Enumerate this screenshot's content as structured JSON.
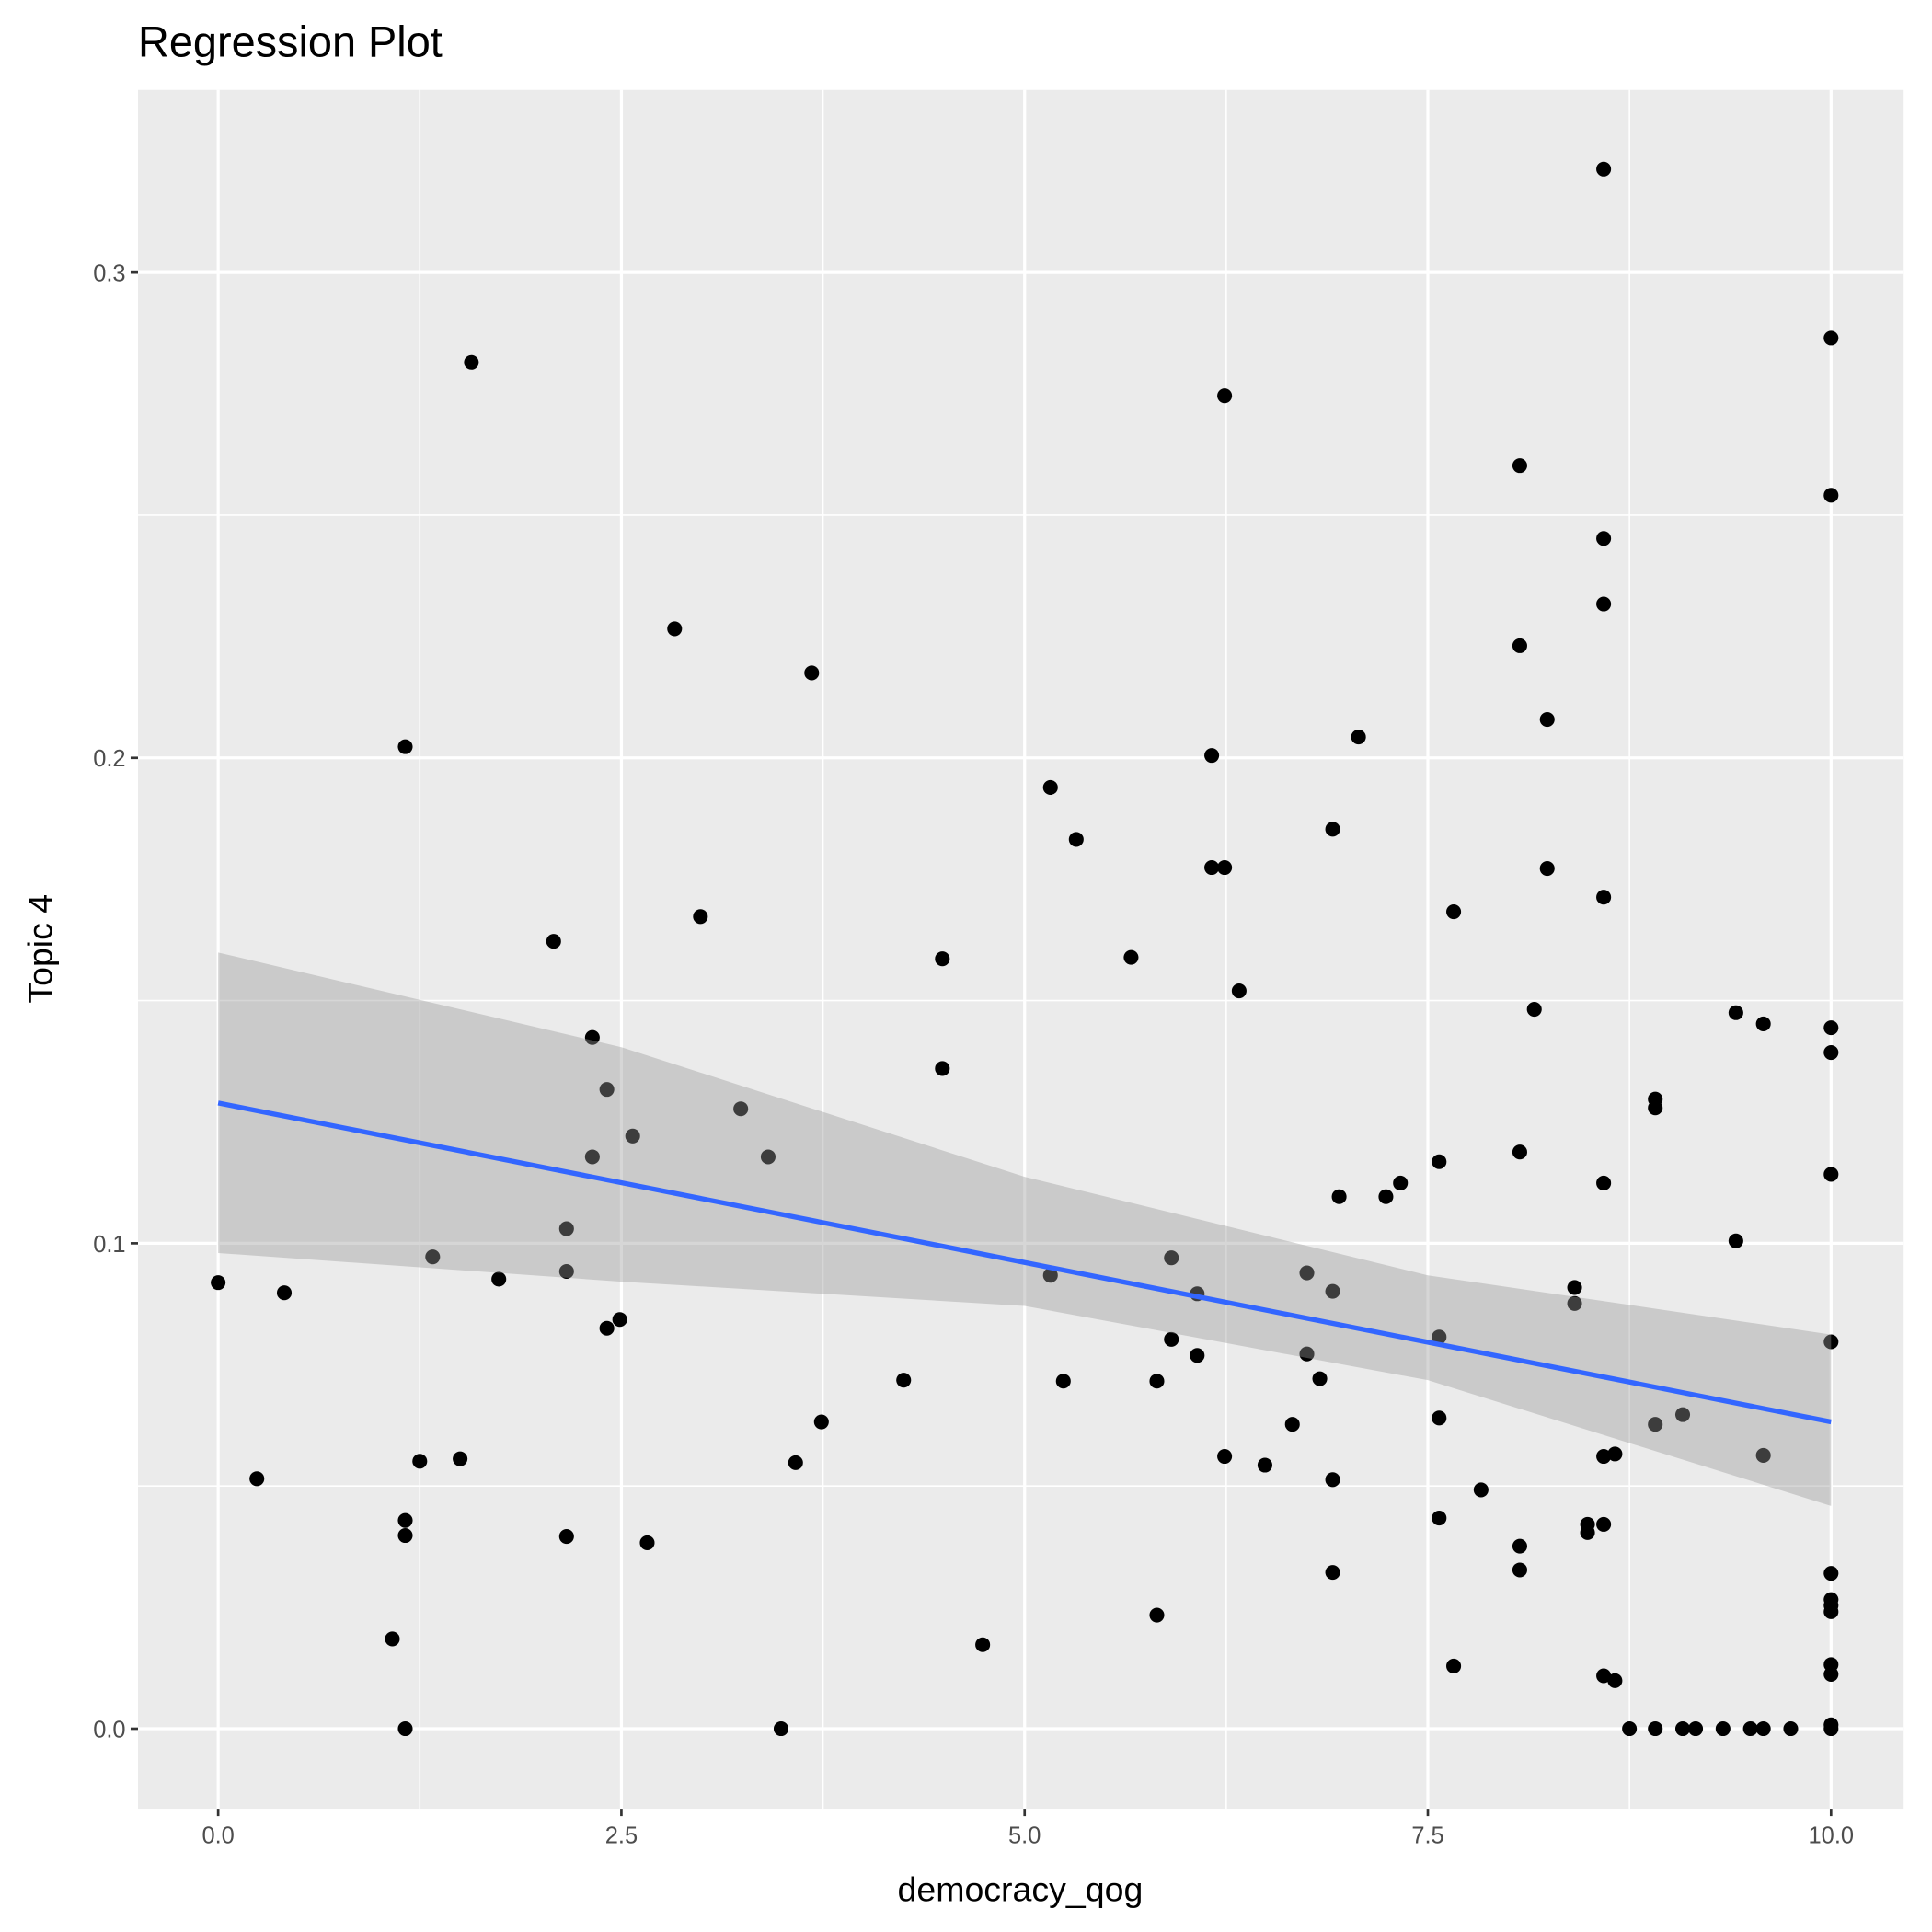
{
  "chart_data": {
    "type": "scatter",
    "title": "Regression Plot",
    "x_label": "democracy_qog",
    "y_label": "Topic 4",
    "xlim": [
      -0.497,
      10.45
    ],
    "ylim": [
      -0.0165,
      0.3376
    ],
    "xticks": [
      {
        "value": 0,
        "label": "0.0"
      },
      2.5,
      {
        "value": 5,
        "label": "5.0"
      },
      7.5,
      {
        "value": 10,
        "label": "10.0"
      }
    ],
    "yticks": [
      {
        "value": 0,
        "label": "0.0"
      },
      0.1,
      0.2,
      0.3
    ],
    "grid": true,
    "series": [
      {
        "color": "#000000",
        "x": [
          0,
          0.24,
          0.41,
          1.08,
          1.16,
          1.16,
          1.16,
          1.16,
          1.25,
          1.33,
          1.5,
          1.57,
          1.74,
          2.08,
          2.16,
          2.16,
          2.16,
          2.32,
          2.32,
          2.41,
          2.41,
          2.49,
          2.57,
          2.66,
          2.83,
          2.99,
          3.24,
          3.41,
          3.49,
          3.58,
          3.68,
          3.74,
          4.25,
          4.49,
          4.49,
          4.74,
          5.16,
          5.16,
          5.24,
          5.32,
          5.66,
          5.82,
          5.82,
          5.91,
          5.91,
          6.07,
          6.07,
          6.16,
          6.16,
          6.24,
          6.24,
          6.24,
          6.33,
          6.49,
          6.66,
          6.75,
          6.75,
          6.83,
          6.91,
          6.91,
          6.91,
          6.91,
          6.95,
          7.07,
          7.24,
          7.33,
          7.57,
          7.57,
          7.57,
          7.57,
          7.66,
          7.66,
          7.83,
          8.07,
          8.07,
          8.07,
          8.07,
          8.07,
          8.16,
          8.24,
          8.24,
          8.41,
          8.41,
          8.49,
          8.49,
          8.59,
          8.59,
          8.59,
          8.59,
          8.59,
          8.59,
          8.59,
          8.59,
          8.66,
          8.66,
          8.75,
          8.91,
          8.91,
          8.91,
          8.91,
          9.08,
          9.08,
          9.16,
          9.33,
          9.41,
          9.41,
          9.5,
          9.58,
          9.58,
          9.58,
          9.75,
          10,
          10,
          10,
          10,
          10,
          10,
          10,
          10,
          10,
          10,
          10,
          10,
          10,
          10
        ],
        "y": [
          0.0919,
          0.0515,
          0.0898,
          0.0185,
          0.2023,
          0.0429,
          0.0398,
          0,
          0.0551,
          0.0972,
          0.0556,
          0.2815,
          0.0926,
          0.1622,
          0.103,
          0.0942,
          0.0396,
          0.1424,
          0.1178,
          0.1317,
          0.0825,
          0.0843,
          0.1221,
          0.0383,
          0.2266,
          0.1673,
          0.1277,
          0.1178,
          0,
          0.0548,
          0.2175,
          0.0632,
          0.0718,
          0.1586,
          0.136,
          0.0173,
          0.1939,
          0.0934,
          0.0716,
          0.1832,
          0.1589,
          0.0716,
          0.0234,
          0.097,
          0.0802,
          0.0896,
          0.0769,
          0.2005,
          0.1774,
          0.1774,
          0.2746,
          0.0561,
          0.152,
          0.0543,
          0.0627,
          0.0939,
          0.0772,
          0.0721,
          0.1853,
          0.0901,
          0.0513,
          0.0322,
          0.1096,
          0.2043,
          0.1096,
          0.1124,
          0.1168,
          0.0807,
          0.064,
          0.0434,
          0.1683,
          0.0129,
          0.0492,
          0.2602,
          0.2231,
          0.1188,
          0.0376,
          0.0327,
          0.1482,
          0.2079,
          0.1772,
          0.0909,
          0.0876,
          0.0421,
          0.0404,
          0.3213,
          0.2452,
          0.2317,
          0.1713,
          0.1124,
          0.0561,
          0.0421,
          0.0109,
          0.0566,
          0.0099,
          0,
          0.1297,
          0.1279,
          0.0627,
          0,
          0.0647,
          0,
          0,
          0,
          0.1475,
          0.1005,
          0,
          0.1452,
          0.0563,
          0,
          0,
          0.2865,
          0.2541,
          0.1444,
          0.1393,
          0.1142,
          0.0797,
          0.032,
          0.0266,
          0.0254,
          0.0241,
          0.0132,
          0.0112,
          0.0008,
          0
        ]
      }
    ],
    "fit": {
      "color": "#3366ff",
      "x": [
        0,
        10
      ],
      "y": [
        0.1289,
        0.0632
      ]
    },
    "band": {
      "color": "#999999",
      "x": [
        0,
        2.5,
        5,
        7.5,
        10
      ],
      "upper": [
        0.1599,
        0.1404,
        0.1137,
        0.0934,
        0.0812
      ],
      "lower": [
        0.098,
        0.0921,
        0.0871,
        0.0718,
        0.0459
      ]
    }
  }
}
